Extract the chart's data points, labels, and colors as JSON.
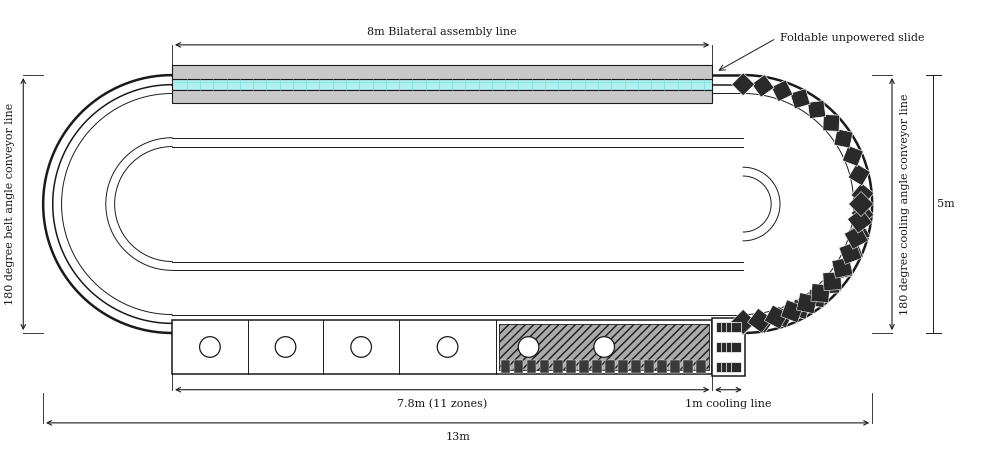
{
  "bg_color": "#ffffff",
  "line_color": "#1a1a1a",
  "cyan_fill": "#b0f0f0",
  "gray_fill": "#c8c8c8",
  "dark_fill": "#2a2a2a",
  "label_8m": "8m Bilateral assembly line",
  "label_7_8m": "7.8m (11 zones)",
  "label_13m": "13m",
  "label_1m": "1m cooling line",
  "label_left": "180 degree belt angle conveyor line",
  "label_right": "180 degree cooling angle conveyor line",
  "label_5m": "5m",
  "label_foldable": "Foldable unpowered slide",
  "lw_outer": 1.8,
  "lw_mid": 1.1,
  "lw_thin": 0.7,
  "fs_main": 8.0
}
